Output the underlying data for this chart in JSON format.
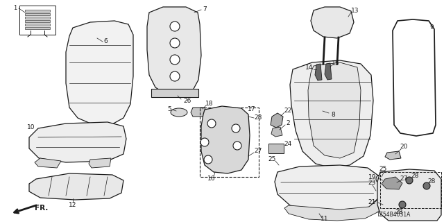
{
  "bg_color": "#ffffff",
  "line_color": "#1a1a1a",
  "diagram_code": "TZ54B4031A",
  "figsize": [
    6.4,
    3.2
  ],
  "dpi": 100
}
